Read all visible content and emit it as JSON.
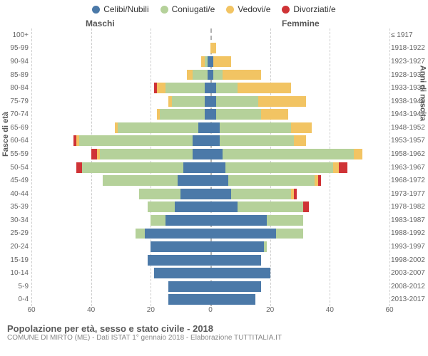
{
  "legend": [
    {
      "label": "Celibi/Nubili",
      "color": "#4b79a8"
    },
    {
      "label": "Coniugati/e",
      "color": "#b5d19a"
    },
    {
      "label": "Vedovi/e",
      "color": "#f2c463"
    },
    {
      "label": "Divorziati/e",
      "color": "#cf3336"
    }
  ],
  "headers": {
    "male": "Maschi",
    "female": "Femmine"
  },
  "y_axis_left_title": "Fasce di età",
  "y_axis_right_title": "Anni di nascita",
  "x_axis": {
    "max": 60,
    "ticks": [
      60,
      40,
      20,
      0,
      20,
      40,
      60
    ]
  },
  "grid_color": "#cccccc",
  "center_color": "#b0b0b0",
  "background": "#ffffff",
  "footer": {
    "title": "Popolazione per età, sesso e stato civile - 2018",
    "subtitle": "COMUNE DI MIRTO (ME) - Dati ISTAT 1° gennaio 2018 - Elaborazione TUTTITALIA.IT"
  },
  "rows": [
    {
      "age": "100+",
      "birth": "≤ 1917",
      "male": {
        "celibi": 0,
        "coniugati": 0,
        "vedovi": 0,
        "divorziati": 0
      },
      "female": {
        "celibi": 0,
        "coniugati": 0,
        "vedovi": 0,
        "divorziati": 0
      }
    },
    {
      "age": "95-99",
      "birth": "1918-1922",
      "male": {
        "celibi": 0,
        "coniugati": 0,
        "vedovi": 0,
        "divorziati": 0
      },
      "female": {
        "celibi": 0,
        "coniugati": 0,
        "vedovi": 2,
        "divorziati": 0
      }
    },
    {
      "age": "90-94",
      "birth": "1923-1927",
      "male": {
        "celibi": 1,
        "coniugati": 1,
        "vedovi": 1,
        "divorziati": 0
      },
      "female": {
        "celibi": 1,
        "coniugati": 0,
        "vedovi": 6,
        "divorziati": 0
      }
    },
    {
      "age": "85-89",
      "birth": "1928-1932",
      "male": {
        "celibi": 1,
        "coniugati": 5,
        "vedovi": 2,
        "divorziati": 0
      },
      "female": {
        "celibi": 1,
        "coniugati": 3,
        "vedovi": 13,
        "divorziati": 0
      }
    },
    {
      "age": "80-84",
      "birth": "1933-1937",
      "male": {
        "celibi": 2,
        "coniugati": 13,
        "vedovi": 3,
        "divorziati": 1
      },
      "female": {
        "celibi": 2,
        "coniugati": 7,
        "vedovi": 18,
        "divorziati": 0
      }
    },
    {
      "age": "75-79",
      "birth": "1938-1942",
      "male": {
        "celibi": 2,
        "coniugati": 11,
        "vedovi": 1,
        "divorziati": 0
      },
      "female": {
        "celibi": 2,
        "coniugati": 14,
        "vedovi": 16,
        "divorziati": 0
      }
    },
    {
      "age": "70-74",
      "birth": "1943-1947",
      "male": {
        "celibi": 2,
        "coniugati": 15,
        "vedovi": 1,
        "divorziati": 0
      },
      "female": {
        "celibi": 2,
        "coniugati": 15,
        "vedovi": 9,
        "divorziati": 0
      }
    },
    {
      "age": "65-69",
      "birth": "1948-1952",
      "male": {
        "celibi": 4,
        "coniugati": 27,
        "vedovi": 1,
        "divorziati": 0
      },
      "female": {
        "celibi": 3,
        "coniugati": 24,
        "vedovi": 7,
        "divorziati": 0
      }
    },
    {
      "age": "60-64",
      "birth": "1953-1957",
      "male": {
        "celibi": 6,
        "coniugati": 38,
        "vedovi": 1,
        "divorziati": 1
      },
      "female": {
        "celibi": 3,
        "coniugati": 25,
        "vedovi": 4,
        "divorziati": 0
      }
    },
    {
      "age": "55-59",
      "birth": "1958-1962",
      "male": {
        "celibi": 6,
        "coniugati": 31,
        "vedovi": 1,
        "divorziati": 2
      },
      "female": {
        "celibi": 4,
        "coniugati": 44,
        "vedovi": 3,
        "divorziati": 0
      }
    },
    {
      "age": "50-54",
      "birth": "1963-1967",
      "male": {
        "celibi": 9,
        "coniugati": 34,
        "vedovi": 0,
        "divorziati": 2
      },
      "female": {
        "celibi": 5,
        "coniugati": 36,
        "vedovi": 2,
        "divorziati": 3
      }
    },
    {
      "age": "45-49",
      "birth": "1968-1972",
      "male": {
        "celibi": 11,
        "coniugati": 25,
        "vedovi": 0,
        "divorziati": 0
      },
      "female": {
        "celibi": 6,
        "coniugati": 29,
        "vedovi": 1,
        "divorziati": 1
      }
    },
    {
      "age": "40-44",
      "birth": "1973-1977",
      "male": {
        "celibi": 10,
        "coniugati": 14,
        "vedovi": 0,
        "divorziati": 0
      },
      "female": {
        "celibi": 7,
        "coniugati": 20,
        "vedovi": 1,
        "divorziati": 1
      }
    },
    {
      "age": "35-39",
      "birth": "1978-1982",
      "male": {
        "celibi": 12,
        "coniugati": 9,
        "vedovi": 0,
        "divorziati": 0
      },
      "female": {
        "celibi": 9,
        "coniugati": 22,
        "vedovi": 0,
        "divorziati": 2
      }
    },
    {
      "age": "30-34",
      "birth": "1983-1987",
      "male": {
        "celibi": 15,
        "coniugati": 5,
        "vedovi": 0,
        "divorziati": 0
      },
      "female": {
        "celibi": 19,
        "coniugati": 12,
        "vedovi": 0,
        "divorziati": 0
      }
    },
    {
      "age": "25-29",
      "birth": "1988-1992",
      "male": {
        "celibi": 22,
        "coniugati": 3,
        "vedovi": 0,
        "divorziati": 0
      },
      "female": {
        "celibi": 22,
        "coniugati": 9,
        "vedovi": 0,
        "divorziati": 0
      }
    },
    {
      "age": "20-24",
      "birth": "1993-1997",
      "male": {
        "celibi": 20,
        "coniugati": 0,
        "vedovi": 0,
        "divorziati": 0
      },
      "female": {
        "celibi": 18,
        "coniugati": 1,
        "vedovi": 0,
        "divorziati": 0
      }
    },
    {
      "age": "15-19",
      "birth": "1998-2002",
      "male": {
        "celibi": 21,
        "coniugati": 0,
        "vedovi": 0,
        "divorziati": 0
      },
      "female": {
        "celibi": 17,
        "coniugati": 0,
        "vedovi": 0,
        "divorziati": 0
      }
    },
    {
      "age": "10-14",
      "birth": "2003-2007",
      "male": {
        "celibi": 19,
        "coniugati": 0,
        "vedovi": 0,
        "divorziati": 0
      },
      "female": {
        "celibi": 20,
        "coniugati": 0,
        "vedovi": 0,
        "divorziati": 0
      }
    },
    {
      "age": "5-9",
      "birth": "2008-2012",
      "male": {
        "celibi": 14,
        "coniugati": 0,
        "vedovi": 0,
        "divorziati": 0
      },
      "female": {
        "celibi": 17,
        "coniugati": 0,
        "vedovi": 0,
        "divorziati": 0
      }
    },
    {
      "age": "0-4",
      "birth": "2013-2017",
      "male": {
        "celibi": 14,
        "coniugati": 0,
        "vedovi": 0,
        "divorziati": 0
      },
      "female": {
        "celibi": 15,
        "coniugati": 0,
        "vedovi": 0,
        "divorziati": 0
      }
    }
  ]
}
